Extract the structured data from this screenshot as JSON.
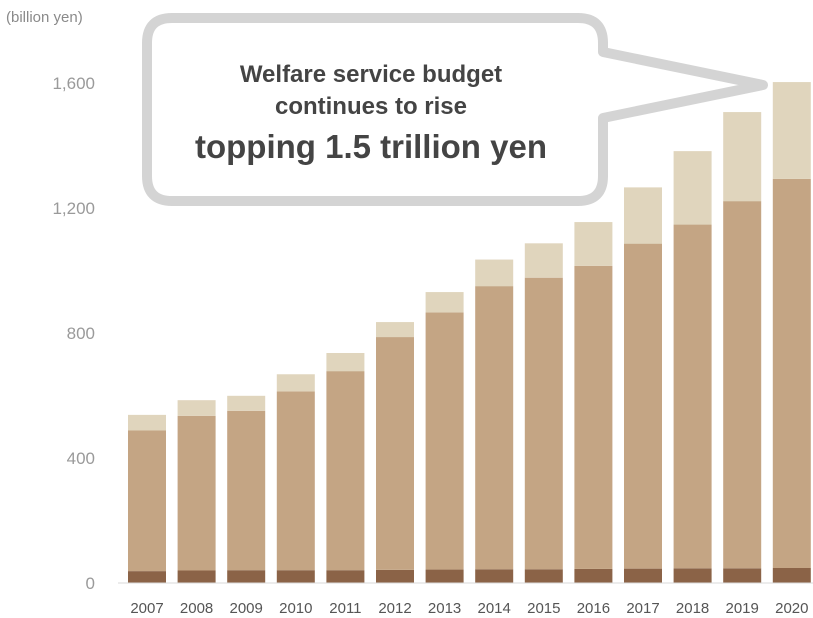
{
  "chart_data": {
    "type": "bar",
    "stacked": true,
    "unit_label": "(billion yen)",
    "categories": [
      "2007",
      "2008",
      "2009",
      "2010",
      "2011",
      "2012",
      "2013",
      "2014",
      "2015",
      "2016",
      "2017",
      "2018",
      "2019",
      "2020"
    ],
    "series": [
      {
        "color": "#8b6347",
        "values": [
          38,
          40,
          41,
          41,
          41,
          42,
          43,
          44,
          44,
          45,
          46,
          47,
          47,
          48
        ]
      },
      {
        "color": "#c4a584",
        "values": [
          450,
          495,
          510,
          572,
          637,
          745,
          823,
          906,
          933,
          970,
          1040,
          1100,
          1175,
          1245
        ]
      },
      {
        "color": "#e0d5bd",
        "values": [
          50,
          50,
          48,
          55,
          58,
          48,
          65,
          85,
          110,
          140,
          180,
          235,
          285,
          310
        ]
      }
    ],
    "yticks": [
      "0",
      "400",
      "800",
      "1,200",
      "1,600"
    ],
    "ytick_values": [
      0,
      400,
      800,
      1200,
      1600
    ],
    "ylim": [
      0,
      1600
    ],
    "grid": false,
    "annotation": {
      "line1": "Welfare service budget",
      "line2": "continues to rise",
      "line3": "topping 1.5 trillion yen"
    }
  }
}
